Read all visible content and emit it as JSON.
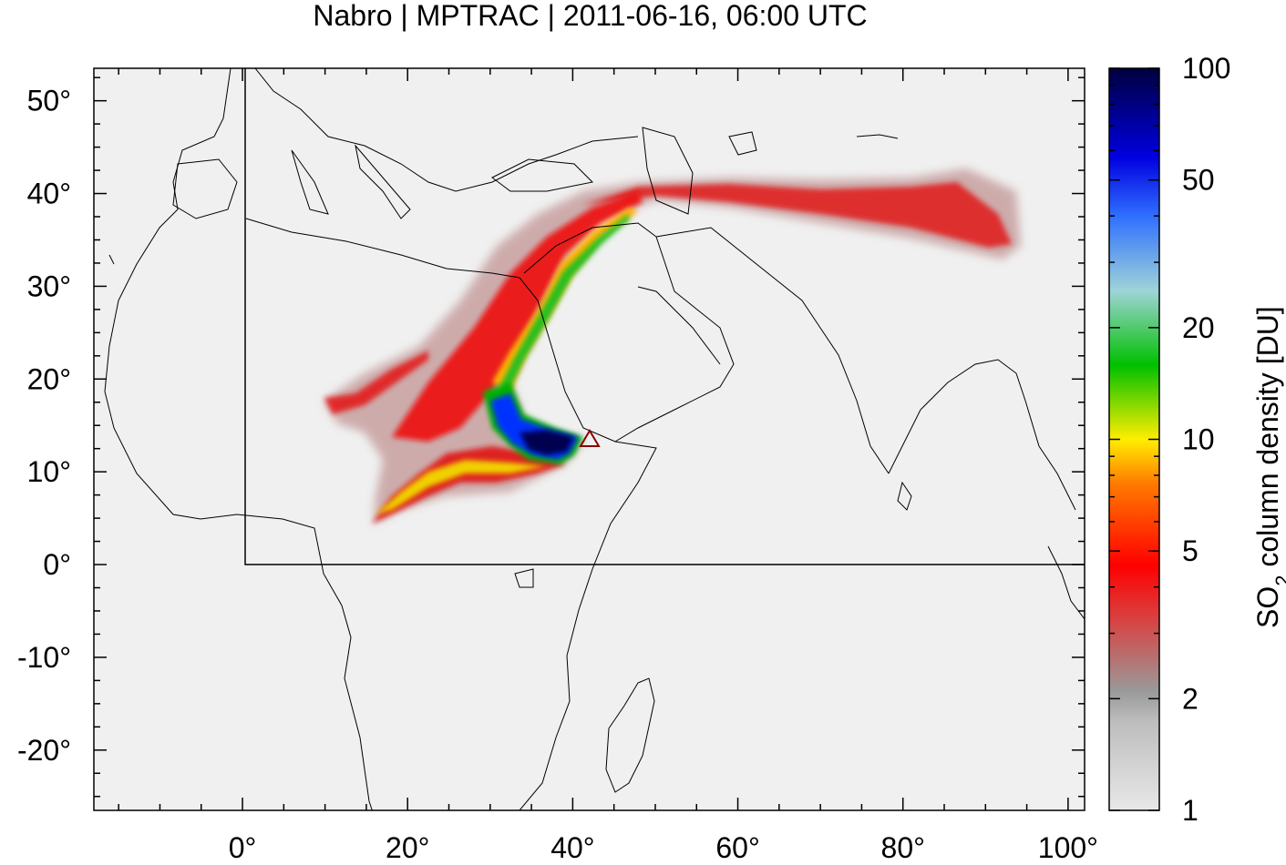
{
  "title": "Nabro | MPTRAC | 2011-06-16, 06:00 UTC",
  "map": {
    "lon_range": [
      -18,
      102
    ],
    "lat_range": [
      -26.5,
      53.5
    ],
    "lat_ticks": [
      50,
      40,
      30,
      20,
      10,
      0,
      -10,
      -20
    ],
    "lat_tick_labels": [
      "50°",
      "40°",
      "30°",
      "20°",
      "10°",
      "0°",
      "-10°",
      "-20°"
    ],
    "lon_ticks": [
      0,
      20,
      40,
      60,
      80,
      100
    ],
    "lon_tick_labels": [
      "0°",
      "20°",
      "40°",
      "60°",
      "80°",
      "100°"
    ],
    "background_color": "#f0f0f0",
    "domain_box": {
      "lon": [
        0,
        102
      ],
      "lat": [
        0,
        53.5
      ]
    },
    "volcano_marker": {
      "name": "Nabro",
      "lon": 41.7,
      "lat": 13.4,
      "symbol": "triangle",
      "color": "#8b0000"
    }
  },
  "colorbar": {
    "label": "SO2 column density [DU]",
    "label_main": "SO",
    "label_sub": "2",
    "label_rest": " column density [DU]",
    "scale": "log",
    "range": [
      1,
      100
    ],
    "ticks": [
      1,
      2,
      5,
      10,
      20,
      50,
      100
    ],
    "tick_labels": [
      "1",
      "2",
      "5",
      "10",
      "20",
      "50",
      "100"
    ],
    "colors": [
      "#e8e8e8",
      "#a0a0a0",
      "#d84a4a",
      "#ff0000",
      "#ff8800",
      "#ffe000",
      "#00cc00",
      "#88ccdd",
      "#0000ff",
      "#000050"
    ]
  }
}
